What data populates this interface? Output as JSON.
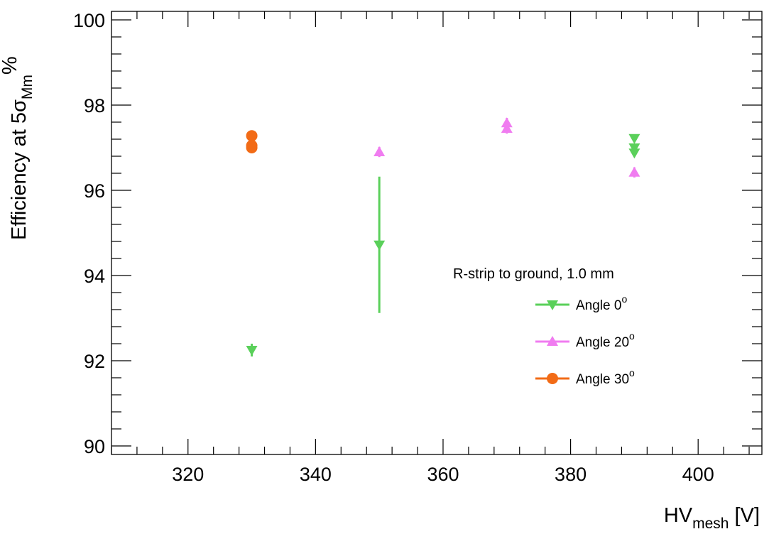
{
  "chart_data": {
    "type": "scatter",
    "title": "",
    "xlabel": {
      "main": "HV",
      "sub": "mesh",
      "unit": " [V]"
    },
    "ylabel": {
      "main": "Efficiency at 5σ",
      "sub": "Mm",
      "unit": "%"
    },
    "xlim": [
      308,
      410
    ],
    "ylim": [
      89.8,
      100.2
    ],
    "xticks": [
      320,
      340,
      360,
      380,
      400
    ],
    "yticks": [
      90,
      92,
      94,
      96,
      98,
      100
    ],
    "legend": {
      "header": "R-strip to ground, 1.0 mm",
      "placement": "center-right"
    },
    "series": [
      {
        "name": "Angle 0",
        "name_sup": "o",
        "marker": "triangle-down",
        "color": "#5ad05a",
        "points": [
          {
            "x": 330,
            "y": 92.25,
            "err": 0.15
          },
          {
            "x": 350,
            "y": 94.72,
            "err": 1.6
          },
          {
            "x": 390,
            "y": 97.22,
            "err": 0.08
          },
          {
            "x": 390,
            "y": 97.0,
            "err": 0.08
          },
          {
            "x": 390,
            "y": 96.88,
            "err": 0.08
          }
        ]
      },
      {
        "name": "Angle 20",
        "name_sup": "o",
        "marker": "triangle-up",
        "color": "#f07cf0",
        "points": [
          {
            "x": 350,
            "y": 96.9,
            "err": 0.12
          },
          {
            "x": 370,
            "y": 97.58,
            "err": 0.12
          },
          {
            "x": 370,
            "y": 97.45,
            "err": 0.12
          },
          {
            "x": 390,
            "y": 96.42,
            "err": 0.12
          }
        ]
      },
      {
        "name": "Angle 30",
        "name_sup": "o",
        "marker": "circle",
        "color": "#f26b16",
        "points": [
          {
            "x": 330,
            "y": 97.28,
            "err": 0.1
          },
          {
            "x": 330,
            "y": 97.05,
            "err": 0.1
          },
          {
            "x": 330,
            "y": 97.0,
            "err": 0.1
          }
        ]
      }
    ]
  }
}
